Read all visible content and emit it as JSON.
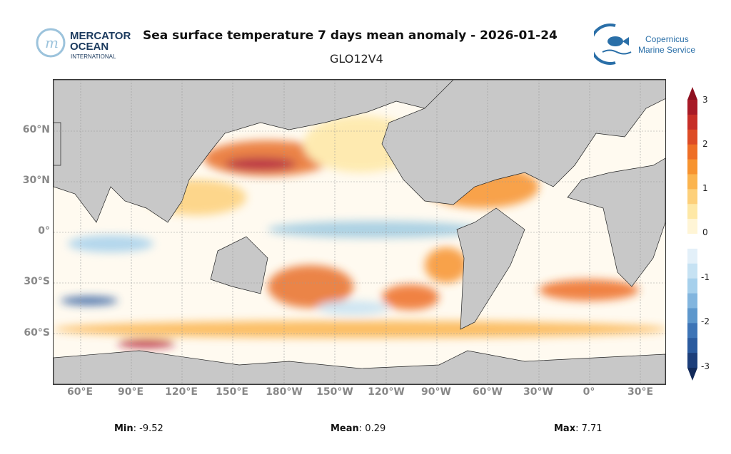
{
  "header": {
    "title": "Sea surface temperature 7 days mean anomaly - 2026-01-24",
    "subtitle": "GLO12V4",
    "left_logo": {
      "line1": "MERCATOR",
      "line2": "OCEAN",
      "line3": "INTERNATIONAL"
    },
    "right_logo": {
      "line1": "Copernicus",
      "line2": "Marine Service"
    }
  },
  "map": {
    "lat_labels": [
      "60°N",
      "30°N",
      "0°",
      "30°S",
      "60°S"
    ],
    "lon_labels": [
      "60°E",
      "90°E",
      "120°E",
      "150°E",
      "180°W",
      "150°W",
      "120°W",
      "90°W",
      "60°W",
      "30°W",
      "0°",
      "30°E"
    ],
    "colors": {
      "land": "#c8c8c8",
      "warm": "#e8702a",
      "hot": "#b2182b",
      "cold": "#2166ac",
      "cool": "#9ecae1"
    }
  },
  "colorbar": {
    "ticks": [
      "3",
      "2",
      "1",
      "0",
      "-1",
      "-2",
      "-3"
    ],
    "range": [
      -3,
      3
    ],
    "colors": [
      "#1c3e7a",
      "#2a5a9e",
      "#3d74b6",
      "#5d97cc",
      "#82b5de",
      "#a6d0ec",
      "#c6e2f3",
      "#e3f0f9",
      "#ffffff",
      "#fff5d6",
      "#fee8a6",
      "#fdd07a",
      "#fbb44e",
      "#f7932f",
      "#ee6e25",
      "#dd4b25",
      "#c72e27",
      "#a81a26"
    ]
  },
  "stats": {
    "min_label": "Min",
    "min": ": -9.52",
    "mean_label": "Mean",
    "mean": ": 0.29",
    "max_label": "Max",
    "max": ": 7.71"
  }
}
